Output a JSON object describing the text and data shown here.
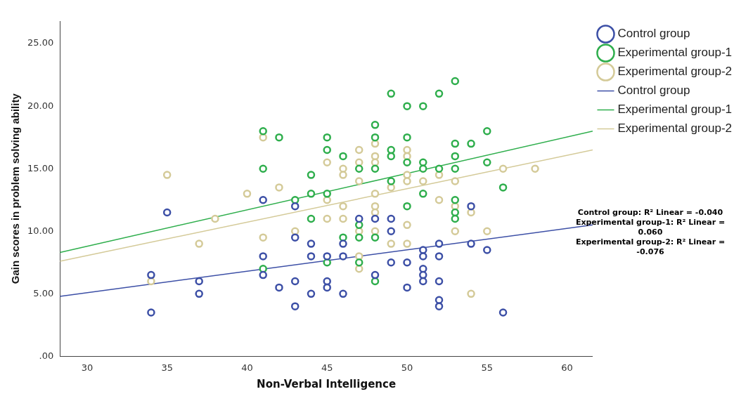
{
  "chart_data": {
    "type": "scatter",
    "xlabel": "Non-Verbal Intelligence",
    "ylabel": "Gain scores in problem solving ability",
    "xlim": [
      28.3,
      61.6
    ],
    "xticks": [
      30,
      35,
      40,
      45,
      50,
      55,
      60
    ],
    "ylim": [
      0,
      26.8
    ],
    "yticks": [
      {
        "value": 0,
        "label": ".00"
      },
      {
        "value": 5,
        "label": "5.00"
      },
      {
        "value": 10,
        "label": "10.00"
      },
      {
        "value": 15,
        "label": "15.00"
      },
      {
        "value": 20,
        "label": "20.00"
      },
      {
        "value": 25,
        "label": "25.00"
      }
    ],
    "grid": false,
    "legend": "top right",
    "line_style": "solid",
    "series": [
      {
        "name": "Control group",
        "marker": "circle",
        "color": "#3c4fa6",
        "x": [
          34,
          34,
          35,
          37,
          37,
          41,
          41,
          41,
          42,
          43,
          43,
          43,
          43,
          54,
          47,
          48,
          49,
          49,
          44,
          46,
          52,
          54,
          44,
          45,
          46,
          51,
          51,
          52,
          55,
          49,
          50,
          51,
          51,
          51,
          48,
          45,
          45,
          52,
          50,
          44,
          46,
          52,
          52,
          56
        ],
        "values": [
          3.5,
          6.5,
          11.5,
          6,
          5,
          12.5,
          8,
          6.5,
          5.5,
          12,
          9.5,
          6,
          4,
          12,
          11,
          11,
          11,
          10,
          9,
          9,
          9,
          9,
          8,
          8,
          8,
          8.5,
          8,
          8,
          8.5,
          7.5,
          7.5,
          7,
          6.5,
          6,
          6.5,
          6,
          5.5,
          6,
          5.5,
          5,
          5,
          4.5,
          4,
          3.5
        ]
      },
      {
        "name": "Experimental group-1",
        "marker": "circle",
        "color": "#2eae4c",
        "x": [
          41,
          42,
          41,
          43,
          41,
          53,
          49,
          52,
          50,
          51,
          48,
          45,
          48,
          50,
          55,
          53,
          54,
          45,
          49,
          49,
          46,
          53,
          47,
          48,
          50,
          51,
          51,
          52,
          53,
          55,
          44,
          49,
          51,
          56,
          44,
          45,
          53,
          50,
          53,
          53,
          44,
          47,
          46,
          47,
          48,
          45,
          47,
          48
        ],
        "values": [
          18,
          17.5,
          15,
          12.5,
          7,
          22,
          21,
          21,
          20,
          20,
          18.5,
          17.5,
          17.5,
          17.5,
          18,
          17,
          17,
          16.5,
          16.5,
          16,
          16,
          16,
          15,
          15,
          15.5,
          15.5,
          15,
          15,
          15,
          15.5,
          14.5,
          14,
          13,
          13.5,
          13,
          13,
          12.5,
          12,
          11.5,
          11,
          11,
          10.5,
          9.5,
          9.5,
          9.5,
          7.5,
          7.5,
          6
        ]
      },
      {
        "name": "Experimental group-2",
        "marker": "circle",
        "color": "#d4ca98",
        "x": [
          41,
          35,
          42,
          40,
          38,
          43,
          41,
          37,
          34,
          45,
          47,
          48,
          50,
          48,
          50,
          47,
          48,
          46,
          46,
          50,
          52,
          47,
          49,
          50,
          51,
          53,
          56,
          58,
          45,
          46,
          48,
          48,
          48,
          52,
          53,
          54,
          45,
          46,
          47,
          48,
          50,
          53,
          55,
          49,
          50,
          47,
          47,
          54
        ],
        "values": [
          17.5,
          14.5,
          13.5,
          13,
          11,
          10,
          9.5,
          9,
          6,
          15.5,
          16.5,
          17,
          16.5,
          16,
          16,
          15.5,
          15.5,
          15,
          14.5,
          14.5,
          14.5,
          14,
          13.5,
          14,
          14,
          14,
          15,
          15,
          12.5,
          12,
          13,
          12,
          11.5,
          12.5,
          12,
          11.5,
          11,
          11,
          10,
          10,
          10.5,
          10,
          10,
          9,
          9,
          8,
          7,
          5
        ]
      },
      {
        "name": "Control group",
        "type": "line",
        "marker": "none",
        "color": "#3c4fa6",
        "x": [
          28.3,
          61.6
        ],
        "values": [
          4.8,
          10.5
        ]
      },
      {
        "name": "Experimental group-1",
        "type": "line",
        "marker": "none",
        "color": "#2eae4c",
        "x": [
          28.3,
          61.6
        ],
        "values": [
          8.3,
          18.0
        ]
      },
      {
        "name": "Experimental group-2",
        "type": "line",
        "marker": "none",
        "color": "#d4ca98",
        "x": [
          28.3,
          61.6
        ],
        "values": [
          7.6,
          16.5
        ]
      }
    ],
    "annotations": [
      "Control group: R² Linear = -0.040",
      "Experimental group-1: R² Linear = 0.060",
      "Experimental group-2: R² Linear = -0.076"
    ]
  }
}
